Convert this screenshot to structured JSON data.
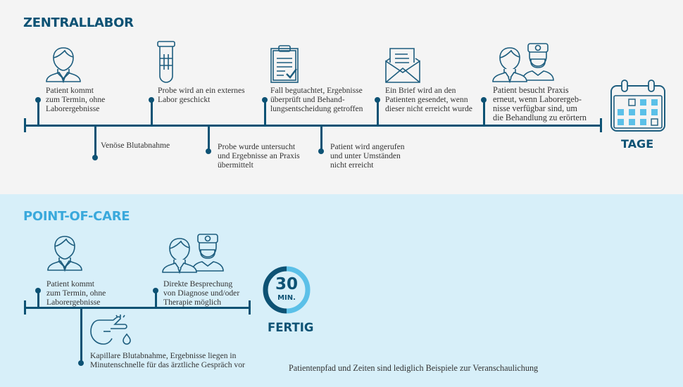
{
  "colors": {
    "dark_blue": "#0d5274",
    "light_blue": "#5bc0e8",
    "top_bg": "#f4f4f4",
    "bottom_bg": "#d7eff9"
  },
  "central_lab": {
    "title": "ZENTRALLABOR",
    "above": [
      {
        "icon": "patient-icon",
        "text": [
          "Patient kommt",
          "zum Termin, ohne",
          "Laborergebnisse"
        ]
      },
      {
        "icon": "test-tube-icon",
        "text": [
          "Probe wird an ein externes",
          "Labor geschickt"
        ]
      },
      {
        "icon": "clipboard-check-icon",
        "text": [
          "Fall begutachtet, Ergebnisse",
          "überprüft und Behand-",
          "lungsentscheidung getroffen"
        ]
      },
      {
        "icon": "envelope-letter-icon",
        "text": [
          "Ein Brief wird an den",
          "Patienten gesendet, wenn",
          "dieser nicht erreicht wurde"
        ]
      },
      {
        "icon": "patient-doctor-icon",
        "text": [
          "Patient besucht Praxis",
          "erneut, wenn Laborergeb-",
          "nisse verfügbar sind, um",
          "die Behandlung zu erörtern"
        ]
      }
    ],
    "below": [
      {
        "text": [
          "Venöse Blutabnahme"
        ]
      },
      {
        "text": [
          "Probe wurde untersucht",
          "und Ergebnisse an Praxis",
          "übermittelt"
        ]
      },
      {
        "text": [
          "Patient wird angerufen",
          "und unter Umständen",
          "nicht erreicht"
        ]
      }
    ],
    "end_icon": "calendar-icon",
    "end_label": "TAGE"
  },
  "point_of_care": {
    "title": "POINT-OF-CARE",
    "above": [
      {
        "icon": "patient-icon",
        "text": [
          "Patient kommt",
          "zum Termin, ohne",
          "Laborergebnisse"
        ]
      },
      {
        "icon": "patient-doctor-icon",
        "text": [
          "Direkte Besprechung",
          "von Diagnose und/oder",
          "Therapie möglich"
        ]
      }
    ],
    "below": [
      {
        "icon": "finger-blood-drop-icon",
        "text": [
          "Kapillare Blutabnahme, Ergebnisse liegen in",
          "Minutenschnelle für das ärztliche Gespräch vor"
        ]
      }
    ],
    "timer": {
      "value": "30",
      "unit": "MIN.",
      "progress": 0.5
    },
    "end_label": "FERTIG"
  },
  "footnote": "Patientenpfad und Zeiten sind lediglich Beispiele zur Veranschaulichung"
}
